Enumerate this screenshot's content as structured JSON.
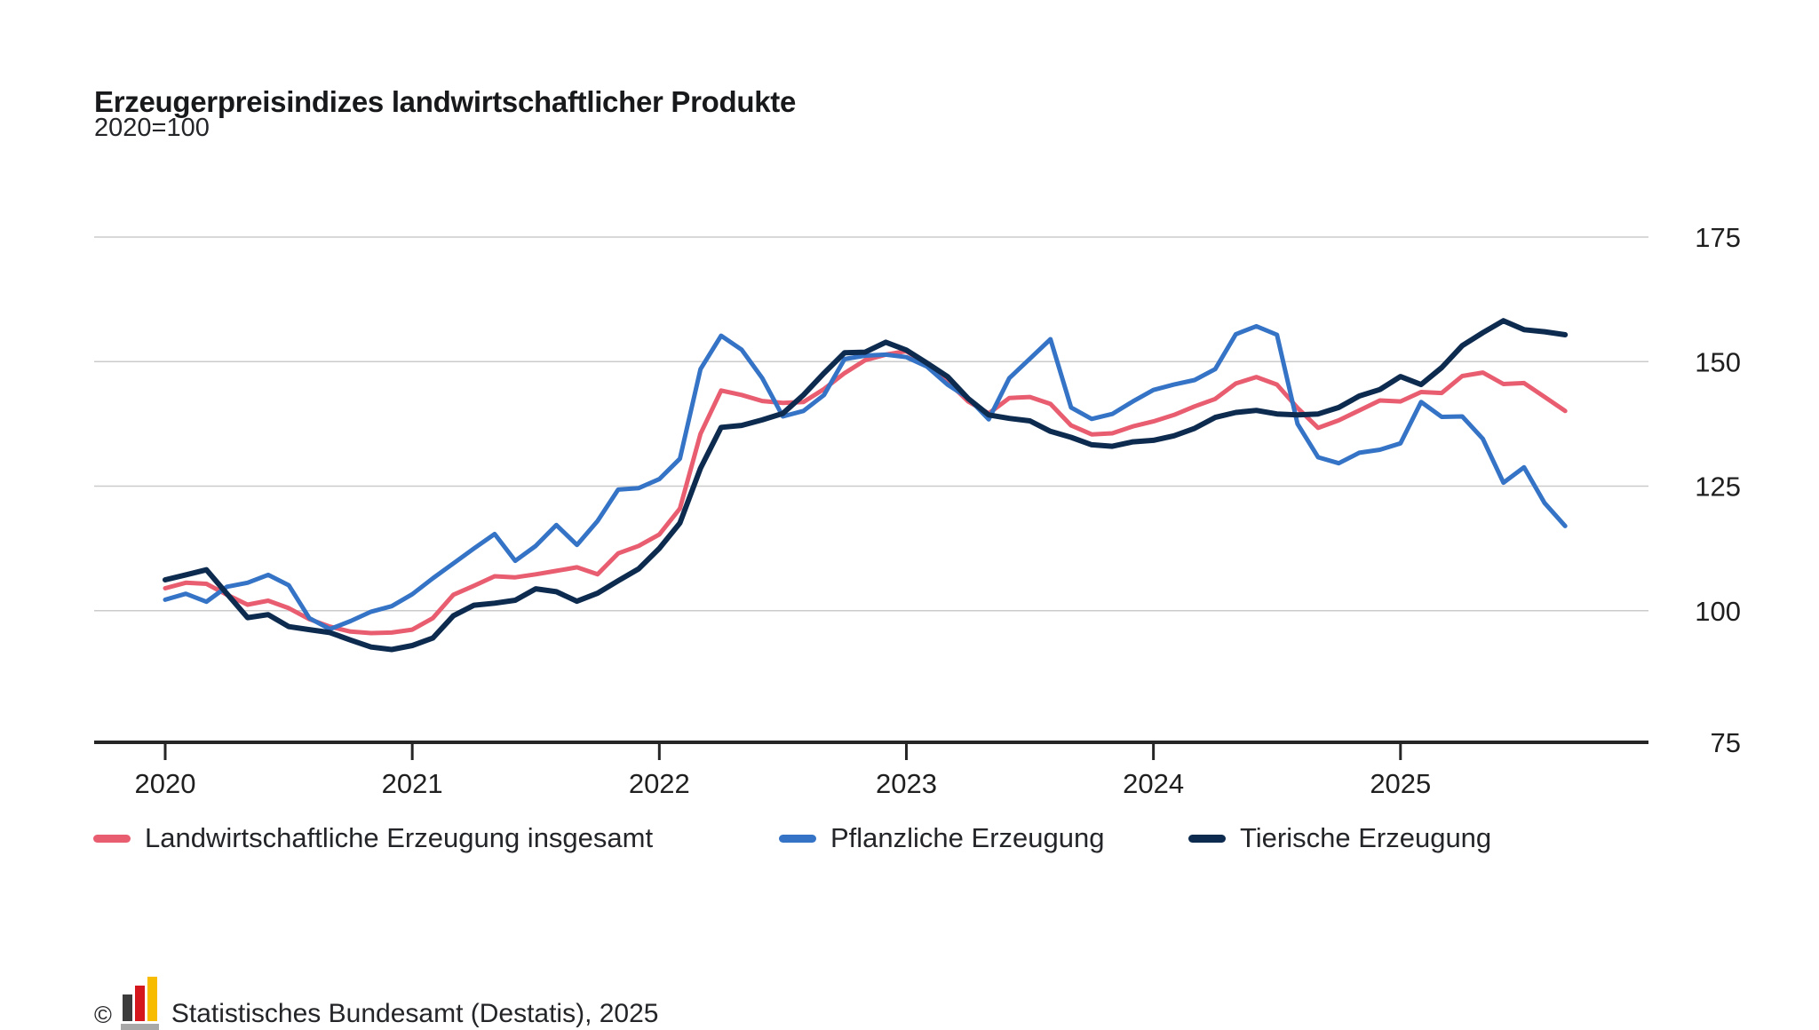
{
  "title": "Erzeugerpreisindizes landwirtschaftlicher Produkte",
  "subtitle": "2020=100",
  "colors": {
    "total_line": "#e95d70",
    "crop_line": "#3473c5",
    "animal_line": "#0d2a4f",
    "gridline": "#cbcbcb",
    "axis": "#262626",
    "label_text": "#1f1f1f",
    "logo_black": "#3c3c3c",
    "logo_red": "#d3171c",
    "logo_yellow": "#f7bb00",
    "logo_base": "#a8a8a8"
  },
  "chart_data": {
    "type": "line",
    "title": "Erzeugerpreisindizes landwirtschaftlicher Produkte",
    "subtitle": "2020=100",
    "frequency": "monthly",
    "x_start": "2020-01",
    "x_end": "2025-09",
    "x_tick_labels": [
      "2020",
      "2021",
      "2022",
      "2023",
      "2024",
      "2025"
    ],
    "y_ticks": [
      75,
      100,
      125,
      150,
      175
    ],
    "ylim": [
      75,
      175
    ],
    "grid": "horizontal",
    "legend_position": "bottom",
    "series": [
      {
        "name": "Landwirtschaftliche Erzeugung insgesamt",
        "color": "#e95d70",
        "values": [
          104.5,
          105.6,
          105.4,
          103.2,
          101.2,
          102.0,
          100.5,
          98.3,
          96.8,
          95.8,
          95.5,
          95.6,
          96.2,
          98.5,
          103.2,
          105.0,
          106.9,
          106.7,
          107.3,
          108.0,
          108.7,
          107.3,
          111.5,
          113.0,
          115.3,
          120.5,
          135.5,
          144.2,
          143.3,
          142.1,
          141.7,
          141.9,
          144.5,
          147.7,
          150.3,
          151.4,
          152.1,
          149.4,
          146.0,
          142.0,
          139.6,
          142.7,
          142.9,
          141.5,
          137.2,
          135.4,
          135.6,
          137.0,
          138.0,
          139.3,
          141.0,
          142.5,
          145.6,
          146.9,
          145.4,
          140.7,
          136.7,
          138.2,
          140.2,
          142.2,
          142.0,
          143.9,
          143.7,
          147.1,
          147.8,
          145.5,
          145.7,
          142.9,
          140.1
        ]
      },
      {
        "name": "Pflanzliche Erzeugung",
        "color": "#3473c5",
        "values": [
          102.2,
          103.4,
          101.8,
          104.8,
          105.6,
          107.2,
          105.1,
          98.5,
          96.3,
          97.9,
          99.8,
          100.9,
          103.3,
          106.5,
          109.5,
          112.5,
          115.4,
          110.0,
          113.0,
          117.2,
          113.2,
          118.0,
          124.3,
          124.6,
          126.4,
          130.5,
          148.5,
          155.2,
          152.4,
          146.7,
          139.0,
          140.1,
          143.3,
          150.5,
          151.2,
          151.4,
          150.9,
          149.0,
          145.4,
          142.7,
          138.4,
          146.7,
          150.6,
          154.5,
          140.8,
          138.5,
          139.5,
          142.0,
          144.3,
          145.4,
          146.3,
          148.5,
          155.5,
          157.1,
          155.4,
          137.5,
          130.8,
          129.6,
          131.7,
          132.3,
          133.6,
          141.9,
          138.9,
          139.0,
          134.5,
          125.7,
          128.8,
          121.6,
          117.0
        ]
      },
      {
        "name": "Tierische Erzeugung",
        "color": "#0d2a4f",
        "values": [
          106.2,
          107.2,
          108.2,
          103.4,
          98.6,
          99.2,
          96.8,
          96.2,
          95.6,
          94.1,
          92.7,
          92.2,
          93.0,
          94.5,
          99.0,
          101.1,
          101.5,
          102.1,
          104.4,
          103.8,
          101.9,
          103.5,
          106.0,
          108.4,
          112.5,
          117.6,
          128.6,
          136.8,
          137.2,
          138.3,
          139.6,
          143.3,
          147.7,
          151.8,
          151.9,
          153.9,
          152.3,
          149.7,
          147.0,
          142.6,
          139.3,
          138.6,
          138.1,
          136.0,
          134.8,
          133.3,
          133.0,
          133.9,
          134.2,
          135.1,
          136.6,
          138.8,
          139.8,
          140.2,
          139.5,
          139.3,
          139.5,
          140.8,
          143.1,
          144.4,
          147.0,
          145.4,
          148.8,
          153.2,
          155.8,
          158.2,
          156.4,
          156.0,
          155.4
        ]
      }
    ]
  },
  "footer": {
    "copyright": "©",
    "logo_icon": "bar-chart-icon",
    "source_text": "Statistisches Bundesamt (Destatis), 2025"
  }
}
